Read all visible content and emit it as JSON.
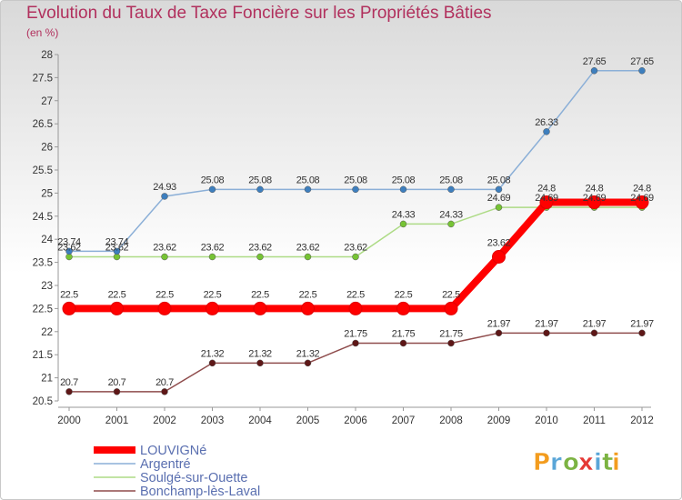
{
  "chart_data": {
    "type": "line",
    "title": "Evolution du Taux de Taxe Foncière sur les Propriétés Bâties",
    "subtitle": "(en %)",
    "xlabel": "",
    "ylabel": "(en %)",
    "ylim": [
      20.5,
      28
    ],
    "ytick_step": 0.5,
    "categories": [
      "2000",
      "2001",
      "2002",
      "2003",
      "2004",
      "2005",
      "2006",
      "2007",
      "2008",
      "2009",
      "2010",
      "2011",
      "2012"
    ],
    "series": [
      {
        "name": "LOUVIGNé",
        "color": "#ff0000",
        "point_color": "#ff0000",
        "line_width": 8,
        "point_radius": 7,
        "values": [
          22.5,
          22.5,
          22.5,
          22.5,
          22.5,
          22.5,
          22.5,
          22.5,
          22.5,
          23.62,
          24.8,
          24.8,
          24.8
        ],
        "labels": [
          "22.5",
          "22.5",
          "22.5",
          "22.5",
          "22.5",
          "22.5",
          "22.5",
          "22.5",
          "22.5",
          "23.62",
          "24.8",
          "24.8",
          "24.8"
        ]
      },
      {
        "name": "Argentré",
        "color": "#8bafd7",
        "point_color": "#3e7fbe",
        "line_width": 1.5,
        "point_radius": 3.5,
        "values": [
          23.74,
          23.74,
          24.93,
          25.08,
          25.08,
          25.08,
          25.08,
          25.08,
          25.08,
          25.08,
          26.33,
          27.65,
          27.65
        ],
        "labels": [
          "23.74",
          "23.74",
          "24.93",
          "25.08",
          "25.08",
          "25.08",
          "25.08",
          "25.08",
          "25.08",
          "25.08",
          "26.33",
          "27.65",
          "27.65"
        ]
      },
      {
        "name": "Soulgé-sur-Ouette",
        "color": "#addb85",
        "point_color": "#76c334",
        "line_width": 1.5,
        "point_radius": 3.5,
        "values": [
          23.62,
          23.62,
          23.62,
          23.62,
          23.62,
          23.62,
          23.62,
          24.33,
          24.33,
          24.69,
          24.69,
          24.69,
          24.69
        ],
        "labels": [
          "23.62",
          "23.62",
          "23.62",
          "23.62",
          "23.62",
          "23.62",
          "23.62",
          "24.33",
          "24.33",
          "24.69",
          "24.69",
          "24.69",
          "24.69"
        ]
      },
      {
        "name": "Bonchamp-lès-Laval",
        "color": "#8f4c4c",
        "point_color": "#5e1717",
        "line_width": 1.5,
        "point_radius": 3.5,
        "values": [
          20.7,
          20.7,
          20.7,
          21.32,
          21.32,
          21.32,
          21.75,
          21.75,
          21.75,
          21.97,
          21.97,
          21.97,
          21.97
        ],
        "labels": [
          "20.7",
          "20.7",
          "20.7",
          "21.32",
          "21.32",
          "21.32",
          "21.75",
          "21.75",
          "21.75",
          "21.97",
          "21.97",
          "21.97",
          "21.97"
        ]
      }
    ],
    "grid": false,
    "legend": "bottom-left"
  },
  "logo": {
    "text": "Proxiti",
    "colors": [
      "#f39c1e",
      "#5aa6d8",
      "#7cb342",
      "#e53935",
      "#5aa6d8",
      "#7cb342",
      "#f39c1e"
    ]
  }
}
